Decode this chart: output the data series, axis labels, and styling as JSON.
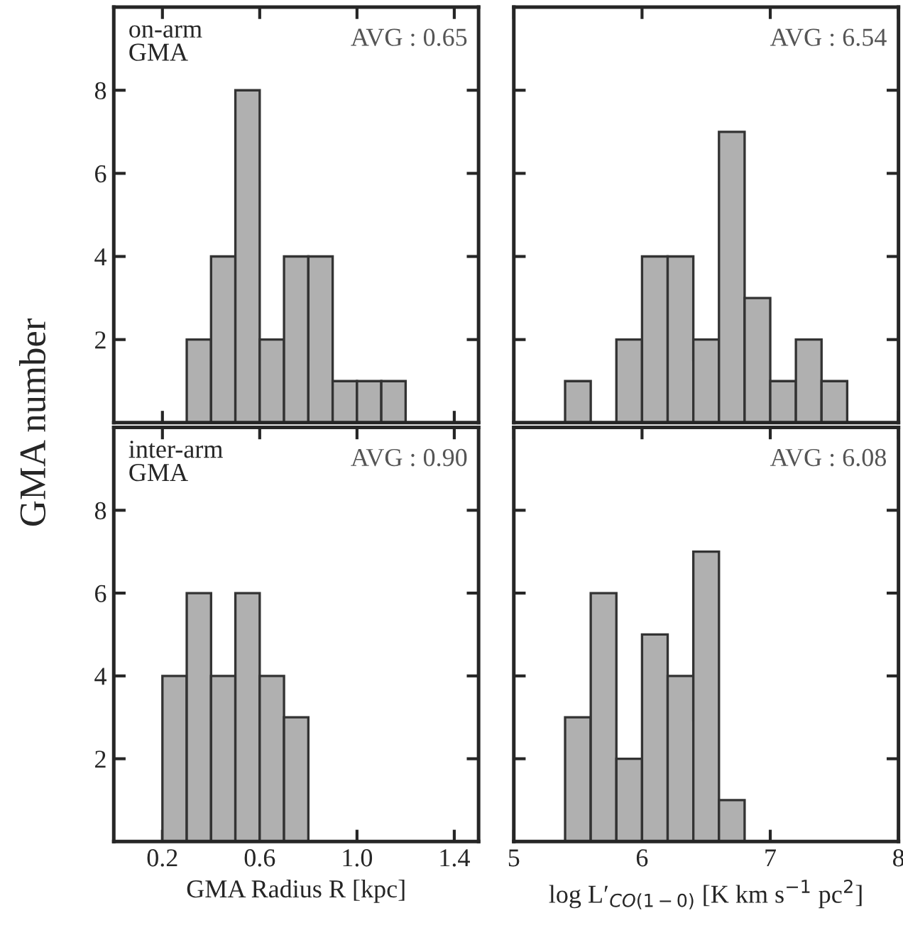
{
  "chart_data": [
    {
      "type": "histogram",
      "bins": [
        0.3,
        0.4,
        0.5,
        0.6,
        0.7,
        0.8,
        0.9,
        1.0,
        1.1,
        1.2
      ],
      "values": [
        2,
        4,
        8,
        2,
        4,
        4,
        1,
        1,
        1
      ],
      "color": "#b0b0b0",
      "xlim": [
        0,
        1.5
      ],
      "xticks": [
        0.2,
        0.6,
        1.0,
        1.4
      ],
      "ylim": [
        0,
        10
      ],
      "yticks": [
        2,
        4,
        6,
        8
      ],
      "tick_labels": "y",
      "ylabel": "GMA number",
      "annotations": [
        "on-arm\nGMA",
        "AVG : 0.65"
      ]
    },
    {
      "type": "histogram",
      "bins": [
        5.4,
        5.6,
        5.8,
        6.0,
        6.2,
        6.4,
        6.6,
        6.8,
        7.0,
        7.2,
        7.4,
        7.6
      ],
      "values": [
        1,
        0,
        2,
        4,
        4,
        2,
        7,
        3,
        1,
        2,
        1
      ],
      "color": "#b0b0b0",
      "xlim": [
        5,
        8
      ],
      "xticks": [
        5,
        6,
        7,
        8
      ],
      "ylim": [
        0,
        10
      ],
      "yticks": [
        2,
        4,
        6,
        8
      ],
      "tick_labels": false,
      "annotations": [
        "AVG : 6.54"
      ]
    },
    {
      "type": "histogram",
      "bins": [
        0.2,
        0.3,
        0.4,
        0.5,
        0.6,
        0.7,
        0.8
      ],
      "values": [
        4,
        6,
        4,
        6,
        4,
        3
      ],
      "color": "#b0b0b0",
      "xlim": [
        0,
        1.5
      ],
      "xticks": [
        0.2,
        0.6,
        {
          "value": 1,
          "label": "1.0"
        },
        1.4
      ],
      "ylim": [
        0,
        10
      ],
      "yticks": [
        2,
        4,
        6,
        8
      ],
      "xlabel": "GMA Radius R [kpc]",
      "annotations": [
        "inter-arm\nGMA",
        "AVG : 0.90"
      ]
    },
    {
      "type": "histogram",
      "bins": [
        5.4,
        5.6,
        5.8,
        6.0,
        6.2,
        6.4,
        6.6,
        6.8
      ],
      "values": [
        3,
        6,
        2,
        5,
        4,
        7,
        1
      ],
      "color": "#b0b0b0",
      "xlim": [
        5,
        8
      ],
      "xticks": [
        5,
        6,
        7,
        8
      ],
      "ylim": [
        0,
        10
      ],
      "yticks": [
        2,
        4,
        6,
        8
      ],
      "tick_labels": "x",
      "xlabel": "log L′$_{CO(1−0)}$ [K km s$^{−1}$ pc$^{2}$]",
      "annotations": [
        "AVG : 6.08"
      ]
    }
  ]
}
